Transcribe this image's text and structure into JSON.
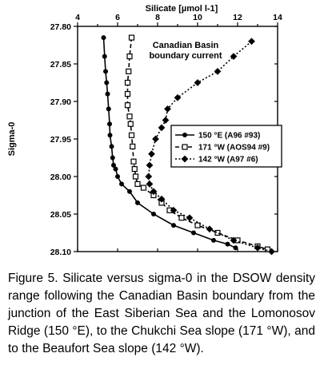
{
  "chart_data": {
    "type": "line",
    "title": "",
    "xlabel": "Silicate",
    "xunit": "[µmol l-1]",
    "ylabel": "Sigma-0",
    "xlim": [
      4,
      14
    ],
    "ylim": [
      27.8,
      28.1
    ],
    "y_inverted": true,
    "x_axis_position": "top",
    "xticks": [
      "4",
      "6",
      "8",
      "10",
      "12",
      "14"
    ],
    "yticks": [
      "27.80",
      "27.85",
      "27.90",
      "27.95",
      "28.00",
      "28.05",
      "28.10"
    ],
    "annotation": "Canadian Basin\nboundary current",
    "legend_position": "right",
    "series": [
      {
        "name": "150 °E  (A96 #93)",
        "marker": "filled-circle",
        "line": "solid",
        "points": [
          [
            5.3,
            27.815
          ],
          [
            5.35,
            27.84
          ],
          [
            5.4,
            27.86
          ],
          [
            5.45,
            27.875
          ],
          [
            5.5,
            27.89
          ],
          [
            5.55,
            27.91
          ],
          [
            5.6,
            27.93
          ],
          [
            5.62,
            27.945
          ],
          [
            5.7,
            27.96
          ],
          [
            5.75,
            27.975
          ],
          [
            5.8,
            27.985
          ],
          [
            5.9,
            27.99
          ],
          [
            6.0,
            28.0
          ],
          [
            6.2,
            28.01
          ],
          [
            6.6,
            28.02
          ],
          [
            7.0,
            28.035
          ],
          [
            7.8,
            28.05
          ],
          [
            8.8,
            28.065
          ],
          [
            9.8,
            28.075
          ],
          [
            10.8,
            28.085
          ],
          [
            11.5,
            28.09
          ],
          [
            11.9,
            28.095
          ]
        ]
      },
      {
        "name": "171 °W (AOS94 #9)",
        "marker": "open-square",
        "line": "dashed",
        "points": [
          [
            6.7,
            27.815
          ],
          [
            6.6,
            27.84
          ],
          [
            6.55,
            27.86
          ],
          [
            6.5,
            27.875
          ],
          [
            6.5,
            27.89
          ],
          [
            6.5,
            27.905
          ],
          [
            6.6,
            27.92
          ],
          [
            6.65,
            27.93
          ],
          [
            6.7,
            27.945
          ],
          [
            6.75,
            27.96
          ],
          [
            6.8,
            27.98
          ],
          [
            6.85,
            27.99
          ],
          [
            6.9,
            28.0
          ],
          [
            7.0,
            28.01
          ],
          [
            7.3,
            28.015
          ],
          [
            7.8,
            28.025
          ],
          [
            8.2,
            28.035
          ],
          [
            8.6,
            28.045
          ],
          [
            9.2,
            28.055
          ],
          [
            10.0,
            28.065
          ],
          [
            11.0,
            28.075
          ],
          [
            12.0,
            28.085
          ],
          [
            13.0,
            28.093
          ],
          [
            13.5,
            28.097
          ]
        ]
      },
      {
        "name": "142 °W (A97 #6)",
        "marker": "filled-diamond",
        "line": "dotted",
        "points": [
          [
            12.7,
            27.82
          ],
          [
            11.8,
            27.84
          ],
          [
            11.0,
            27.86
          ],
          [
            10.0,
            27.875
          ],
          [
            9.0,
            27.895
          ],
          [
            8.5,
            27.91
          ],
          [
            8.4,
            27.925
          ],
          [
            8.2,
            27.935
          ],
          [
            7.9,
            27.95
          ],
          [
            7.7,
            27.97
          ],
          [
            7.6,
            27.985
          ],
          [
            7.55,
            28.0
          ],
          [
            7.6,
            28.01
          ],
          [
            7.8,
            28.02
          ],
          [
            8.2,
            28.03
          ],
          [
            8.8,
            28.045
          ],
          [
            9.6,
            28.055
          ],
          [
            10.6,
            28.07
          ],
          [
            11.8,
            28.085
          ],
          [
            13.0,
            28.095
          ],
          [
            13.7,
            28.1
          ]
        ]
      }
    ]
  },
  "caption": "Figure 5.  Silicate versus sigma-0 in the DSOW density range following the Canadian Basin boundary from the junction of the East Siberian Sea and the Lomonosov Ridge (150 °E), to the Chukchi Sea slope (171 °W), and to the Beaufort Sea slope (142 °W)."
}
